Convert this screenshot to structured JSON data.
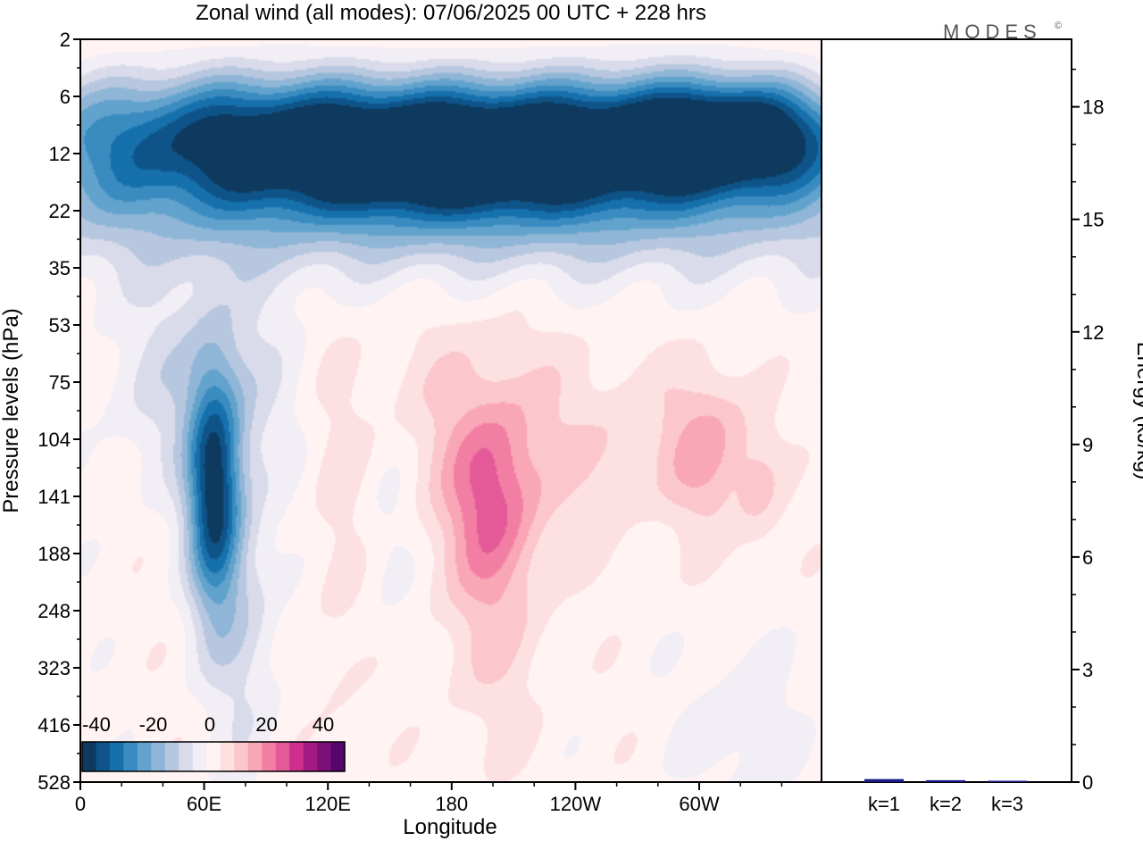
{
  "chart_data": [
    {
      "type": "heatmap",
      "title": "Zonal wind (all modes):  07/06/2025  00 UTC  + 228 hrs",
      "xlabel": "Longitude",
      "ylabel": "Pressure levels (hPa)",
      "x_ticks": [
        "0",
        "60E",
        "120E",
        "180",
        "120W",
        "60W"
      ],
      "y_ticks": [
        "2",
        "6",
        "12",
        "22",
        "35",
        "53",
        "75",
        "104",
        "141",
        "188",
        "248",
        "323",
        "416",
        "528"
      ],
      "colorbar": {
        "ticks": [
          "-40",
          "-20",
          "0",
          "20",
          "40"
        ],
        "range": [
          -40,
          40
        ],
        "colors": [
          "#0d3a5e",
          "#0f5489",
          "#1670ac",
          "#3a8bc0",
          "#62a3cd",
          "#8fb6d6",
          "#b6c7df",
          "#d9dbea",
          "#f2eef5",
          "#fff3f3",
          "#fde0e2",
          "#fbc6cc",
          "#f9a6b6",
          "#f27ea4",
          "#e45a98",
          "#cf2f8c",
          "#a51a82",
          "#7c1079",
          "#55056e"
        ]
      },
      "features": [
        {
          "lon": 90,
          "level": 10,
          "value": -34,
          "sx": 80,
          "sy": 5
        },
        {
          "lon": 260,
          "level": 10,
          "value": -30,
          "sx": 70,
          "sy": 5
        },
        {
          "lon": 320,
          "level": 10,
          "value": -28,
          "sx": 35,
          "sy": 4
        },
        {
          "lon": 180,
          "level": 13,
          "value": -18,
          "sx": 60,
          "sy": 5
        },
        {
          "lon": 180,
          "level": 21,
          "value": -16,
          "sx": 200,
          "sy": 9
        },
        {
          "lon": 180,
          "level": 3,
          "value": 5,
          "sx": 200,
          "sy": 3
        },
        {
          "lon": 65,
          "level": 140,
          "value": -36,
          "sx": 9,
          "sy": 55
        },
        {
          "lon": 60,
          "level": 75,
          "value": -10,
          "sx": 30,
          "sy": 30
        },
        {
          "lon": 80,
          "level": 260,
          "value": -8,
          "sx": 12,
          "sy": 120
        },
        {
          "lon": 200,
          "level": 140,
          "value": 16,
          "sx": 16,
          "sy": 45
        },
        {
          "lon": 190,
          "level": 90,
          "value": 5,
          "sx": 40,
          "sy": 40
        },
        {
          "lon": 200,
          "level": 260,
          "value": 6,
          "sx": 18,
          "sy": 100
        },
        {
          "lon": 305,
          "level": 110,
          "value": 12,
          "sx": 14,
          "sy": 30
        },
        {
          "lon": 330,
          "level": 135,
          "value": 6,
          "sx": 8,
          "sy": 30
        },
        {
          "lon": 260,
          "level": 110,
          "value": 5,
          "sx": 25,
          "sy": 30
        },
        {
          "lon": 320,
          "level": 420,
          "value": -5,
          "sx": 18,
          "sy": 100
        },
        {
          "lon": 125,
          "level": 200,
          "value": 3,
          "sx": 10,
          "sy": 150
        },
        {
          "lon": 150,
          "level": 170,
          "value": -4,
          "sx": 10,
          "sy": 60
        }
      ]
    },
    {
      "type": "bar",
      "ylabel": "Energy (kJ/kg)",
      "categories": [
        "k=1",
        "k=2",
        "k=3"
      ],
      "values": [
        0.08,
        0.05,
        0.03
      ],
      "ylim": [
        0,
        19.8
      ],
      "y_ticks": [
        "0",
        "3",
        "6",
        "9",
        "12",
        "15",
        "18"
      ],
      "bar_color": "#1a1a8a"
    }
  ],
  "logo": "MODES",
  "logo_mark": "©"
}
